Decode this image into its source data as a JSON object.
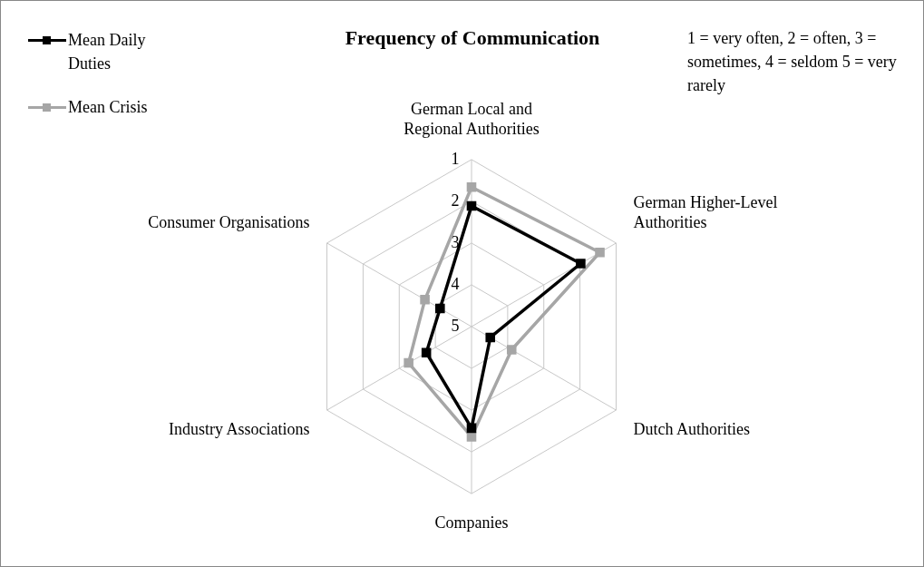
{
  "chart_data": {
    "type": "radar",
    "title": "Frequency of Communication",
    "annotations": [
      "1 = very often, 2 = often, 3 = sometimes, 4 = seldom 5 = very rarely"
    ],
    "categories": [
      "German Local and Regional Authorities",
      "German Higher-Level Authorities",
      "Dutch Authorities",
      "Companies",
      "Industry Associations",
      "Consumer Organisations"
    ],
    "series": [
      {
        "name": "Mean Daily Duties",
        "color": "#000000",
        "values": [
          2.11,
          1.98,
          4.48,
          2.57,
          3.75,
          4.13
        ]
      },
      {
        "name": "Mean Crisis",
        "color": "#a6a6a6",
        "values": [
          1.66,
          1.45,
          3.89,
          2.36,
          3.26,
          3.71
        ]
      }
    ],
    "ylim": [
      5,
      1
    ],
    "yticks": [
      1,
      2,
      3,
      4,
      5
    ],
    "grid": true,
    "legend": "top left",
    "marker": "square",
    "line_style": "solid"
  }
}
